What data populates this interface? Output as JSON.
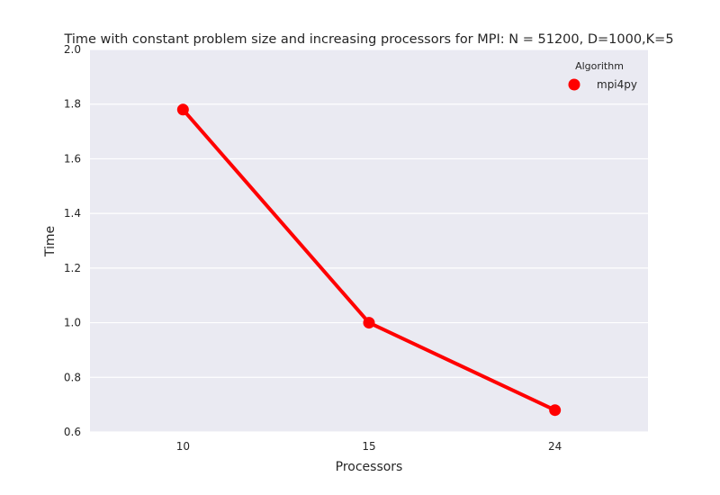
{
  "chart_data": {
    "type": "line",
    "title": "Time with constant problem size and increasing processors for MPI: N = 51200, D=1000,K=5",
    "xlabel": "Processors",
    "ylabel": "Time",
    "categories": [
      "10",
      "15",
      "24"
    ],
    "ylim": [
      0.6,
      2.0
    ],
    "yticks": [
      "0.6",
      "0.8",
      "1.0",
      "1.2",
      "1.4",
      "1.6",
      "1.8",
      "2.0"
    ],
    "grid": true,
    "legend": {
      "title": "Algorithm",
      "placement": "top-right"
    },
    "series": [
      {
        "name": "mpi4py",
        "values": [
          1.78,
          1.0,
          0.68
        ],
        "color": "#ff0000"
      }
    ],
    "background_color": "#eaeaf2"
  }
}
